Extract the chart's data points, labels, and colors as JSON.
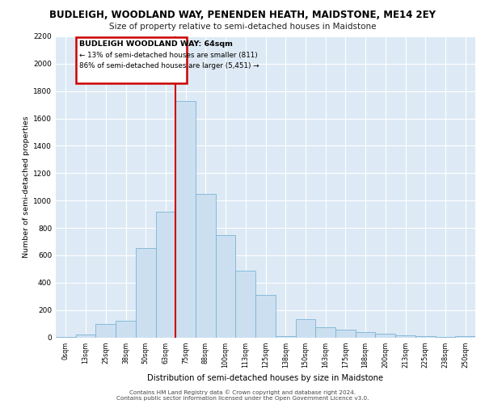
{
  "title1": "BUDLEIGH, WOODLAND WAY, PENENDEN HEATH, MAIDSTONE, ME14 2EY",
  "title2": "Size of property relative to semi-detached houses in Maidstone",
  "xlabel": "Distribution of semi-detached houses by size in Maidstone",
  "ylabel": "Number of semi-detached properties",
  "annotation_title": "BUDLEIGH WOODLAND WAY: 64sqm",
  "annotation_line1": "← 13% of semi-detached houses are smaller (811)",
  "annotation_line2": "86% of semi-detached houses are larger (5,451) →",
  "bar_color": "#ccdff0",
  "bar_edge_color": "#7ab3d3",
  "marker_color": "#cc0000",
  "annotation_box_color": "#cc0000",
  "figure_bg": "#ffffff",
  "plot_bg_color": "#ddeaf5",
  "categories": [
    "0sqm",
    "13sqm",
    "25sqm",
    "38sqm",
    "50sqm",
    "63sqm",
    "75sqm",
    "88sqm",
    "100sqm",
    "113sqm",
    "125sqm",
    "138sqm",
    "150sqm",
    "163sqm",
    "175sqm",
    "188sqm",
    "200sqm",
    "213sqm",
    "225sqm",
    "238sqm",
    "250sqm"
  ],
  "values": [
    5,
    20,
    100,
    120,
    650,
    920,
    1730,
    1050,
    750,
    490,
    310,
    10,
    130,
    75,
    55,
    40,
    25,
    15,
    8,
    5,
    10
  ],
  "ylim": [
    0,
    2200
  ],
  "yticks": [
    0,
    200,
    400,
    600,
    800,
    1000,
    1200,
    1400,
    1600,
    1800,
    2000,
    2200
  ],
  "footer1": "Contains HM Land Registry data © Crown copyright and database right 2024.",
  "footer2": "Contains public sector information licensed under the Open Government Licence v3.0."
}
